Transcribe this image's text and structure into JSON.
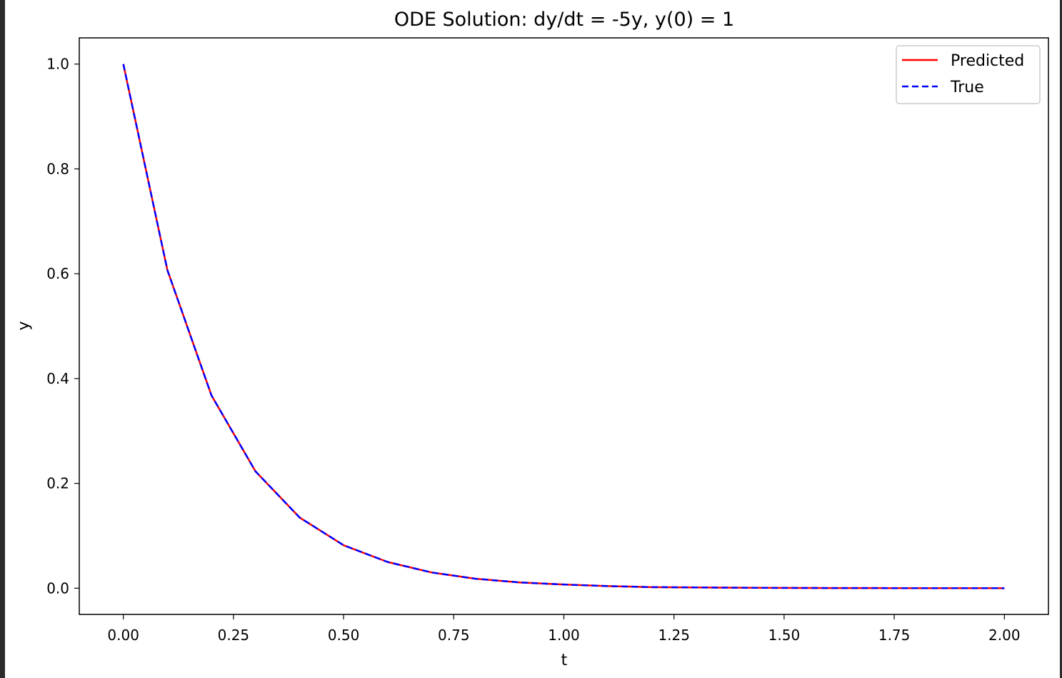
{
  "chart_data": {
    "type": "line",
    "title": "ODE Solution: dy/dt = -5y, y(0) = 1",
    "xlabel": "t",
    "ylabel": "y",
    "xlim": [
      -0.1,
      2.1
    ],
    "ylim": [
      -0.05,
      1.05
    ],
    "xticks": [
      0.0,
      0.25,
      0.5,
      0.75,
      1.0,
      1.25,
      1.5,
      1.75,
      2.0
    ],
    "xtick_labels": [
      "0.00",
      "0.25",
      "0.50",
      "0.75",
      "1.00",
      "1.25",
      "1.50",
      "1.75",
      "2.00"
    ],
    "yticks": [
      0.0,
      0.2,
      0.4,
      0.6,
      0.8,
      1.0
    ],
    "ytick_labels": [
      "0.0",
      "0.2",
      "0.4",
      "0.6",
      "0.8",
      "1.0"
    ],
    "grid": false,
    "legend_position": "top-right",
    "x": [
      0.0,
      0.1,
      0.2,
      0.3,
      0.4,
      0.5,
      0.6,
      0.7,
      0.8,
      0.9,
      1.0,
      1.1,
      1.2,
      1.3,
      1.4,
      1.5,
      1.6,
      1.7,
      1.8,
      1.9,
      2.0
    ],
    "series": [
      {
        "name": "Predicted",
        "color": "#ff0000",
        "style": "solid",
        "values": [
          1.0,
          0.607,
          0.368,
          0.223,
          0.135,
          0.082,
          0.05,
          0.03,
          0.018,
          0.011,
          0.007,
          0.004,
          0.002,
          0.0015,
          0.0009,
          0.0006,
          0.0003,
          0.0002,
          0.0001,
          0.0001,
          0.0
        ]
      },
      {
        "name": "True",
        "color": "#0000ff",
        "style": "dashed",
        "values": [
          1.0,
          0.607,
          0.368,
          0.223,
          0.135,
          0.082,
          0.05,
          0.03,
          0.018,
          0.011,
          0.007,
          0.004,
          0.002,
          0.0015,
          0.0009,
          0.0006,
          0.0003,
          0.0002,
          0.0001,
          0.0001,
          0.0
        ]
      }
    ]
  }
}
